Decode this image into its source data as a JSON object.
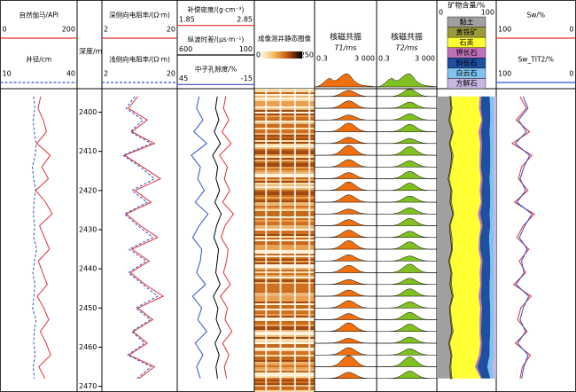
{
  "depth_axis": {
    "label": "深度/m",
    "lim": [
      2394,
      2471
    ],
    "ticks": [
      2400,
      2410,
      2420,
      2430,
      2440,
      2450,
      2460,
      2470
    ]
  },
  "depth": [
    2396,
    2399,
    2402,
    2405,
    2408,
    2411,
    2414,
    2417,
    2420,
    2423,
    2426,
    2429,
    2432,
    2435,
    2438,
    2441,
    2444,
    2447,
    2450,
    2453,
    2456,
    2459,
    2462,
    2465,
    2468
  ],
  "tracks": [
    {
      "curves": [
        {
          "name": "自然伽马/API",
          "color": "#e03030",
          "lim": [
            0,
            200
          ],
          "values": [
            105,
            98,
            112,
            120,
            95,
            130,
            108,
            125,
            92,
            118,
            135,
            102,
            115,
            128,
            99,
            110,
            122,
            96,
            113,
            126,
            104,
            119,
            131,
            100,
            116
          ]
        },
        {
          "name": "井径/cm",
          "color": "#3050d0",
          "dash": true,
          "lim": [
            10,
            40
          ],
          "values": [
            23,
            23.5,
            22.8,
            23.2,
            24,
            23.6,
            22.5,
            23,
            23.8,
            23.1,
            22.9,
            23.4,
            23,
            24.2,
            23.3,
            22.7,
            23.5,
            23.1,
            22.6,
            23.9,
            23.2,
            23,
            23.6,
            22.8,
            23.3
          ]
        }
      ]
    },
    {
      "log": true,
      "curves": [
        {
          "name": "深侧向电阻率/(Ω·m)",
          "color": "#e03030",
          "lim": [
            2,
            20
          ],
          "values": [
            6,
            4.5,
            8,
            5,
            10,
            4,
            7,
            12,
            5.5,
            9,
            4.2,
            6.5,
            11,
            5,
            8.5,
            4.8,
            7.5,
            13,
            6,
            9.5,
            5.2,
            8,
            4.6,
            10,
            6.2
          ]
        },
        {
          "name": "浅侧向电阻率/(Ω·m)",
          "color": "#3050d0",
          "dash": true,
          "lim": [
            2,
            20
          ],
          "values": [
            5.5,
            4.2,
            7,
            4.8,
            9,
            3.8,
            6.5,
            10,
            5,
            8,
            4,
            6,
            9.5,
            4.6,
            7.8,
            4.5,
            7,
            11,
            5.6,
            8.8,
            5,
            7.4,
            4.4,
            9,
            5.8
          ]
        }
      ]
    },
    {
      "curves": [
        {
          "name": "补偿密度/(g·cm⁻³)",
          "color": "#e03030",
          "lim": [
            1.85,
            2.85
          ],
          "values": [
            2.48,
            2.45,
            2.52,
            2.43,
            2.55,
            2.4,
            2.5,
            2.46,
            2.53,
            2.44,
            2.58,
            2.47,
            2.42,
            2.51,
            2.49,
            2.45,
            2.54,
            2.41,
            2.5,
            2.47,
            2.56,
            2.44,
            2.52,
            2.46,
            2.49
          ]
        },
        {
          "name": "纵波时差/(μs·m⁻¹)",
          "color": "#000000",
          "lim": [
            600,
            100
          ],
          "values": [
            340,
            352,
            330,
            360,
            320,
            370,
            338,
            348,
            325,
            356,
            315,
            345,
            362,
            332,
            341,
            350,
            322,
            366,
            336,
            347,
            318,
            355,
            328,
            349,
            339
          ]
        },
        {
          "name": "中子孔隙度/%",
          "color": "#3050d0",
          "lim": [
            45,
            -15
          ],
          "values": [
            28,
            30,
            25,
            32,
            22,
            34,
            27,
            29,
            24,
            31,
            21,
            28,
            33,
            26,
            27,
            30,
            23,
            33,
            26,
            29,
            22,
            31,
            25,
            30,
            27
          ]
        }
      ]
    },
    {
      "title": "成像测井静态图像",
      "scale": [
        0,
        250
      ]
    },
    {
      "title": "核磁共振",
      "unit": "T1/ms",
      "color": "#f07010",
      "scale": [
        0.3,
        {
          "value": 3000,
          "label": "3 000"
        }
      ],
      "amplitude": [
        0.5,
        0.6,
        0.4,
        0.7,
        0.5,
        0.8,
        0.6,
        0.5,
        0.7,
        0.6,
        0.4,
        0.5,
        0.6,
        0.7,
        0.5,
        0.6,
        0.4,
        0.5,
        0.6,
        0.5,
        0.7,
        0.4,
        0.6,
        0.9,
        0.5
      ]
    },
    {
      "title": "核磁共振",
      "unit": "T2/ms",
      "color": "#80c020",
      "scale": [
        0.3,
        {
          "value": 3000,
          "label": "3 000"
        }
      ],
      "amplitude": [
        0.6,
        0.5,
        0.5,
        0.6,
        0.4,
        0.7,
        0.5,
        0.6,
        0.6,
        0.5,
        0.5,
        0.6,
        0.5,
        0.6,
        0.4,
        0.7,
        0.5,
        0.6,
        0.5,
        0.6,
        0.6,
        0.5,
        0.5,
        0.8,
        0.6
      ]
    },
    {
      "title": "矿物含量/%",
      "scale": [
        0,
        100
      ],
      "series": [
        {
          "name": "黏土",
          "color": "#a0a0a0",
          "values": [
            22,
            24,
            20,
            26,
            21,
            25,
            23,
            19,
            24,
            22,
            27,
            21,
            23,
            25,
            20,
            24,
            22,
            26,
            21,
            23,
            25,
            20,
            24,
            22,
            23
          ]
        },
        {
          "name": "黄铁矿",
          "color": "#9a9a3c",
          "values": [
            2,
            2,
            3,
            2,
            2,
            3,
            2,
            2,
            2,
            3,
            2,
            2,
            3,
            2,
            2,
            2,
            3,
            2,
            2,
            2,
            3,
            2,
            2,
            2,
            3
          ]
        },
        {
          "name": "石英",
          "color": "#ffff33",
          "values": [
            48,
            45,
            52,
            42,
            50,
            44,
            47,
            53,
            46,
            49,
            40,
            51,
            45,
            43,
            52,
            46,
            48,
            42,
            50,
            47,
            44,
            51,
            45,
            40,
            48
          ]
        },
        {
          "name": "钾长石",
          "color": "#c070b8",
          "values": [
            3,
            3,
            2,
            4,
            3,
            3,
            2,
            3,
            3,
            2,
            4,
            3,
            2,
            3,
            3,
            3,
            2,
            4,
            3,
            3,
            2,
            3,
            3,
            4,
            2
          ]
        },
        {
          "name": "斜长石",
          "color": "#1f4fa0",
          "values": [
            14,
            16,
            13,
            15,
            14,
            15,
            16,
            12,
            15,
            14,
            16,
            13,
            15,
            16,
            13,
            15,
            14,
            15,
            14,
            15,
            16,
            13,
            15,
            17,
            14
          ]
        },
        {
          "name": "白云石",
          "color": "#7fc4f0",
          "values": [
            7,
            6,
            6,
            7,
            6,
            6,
            6,
            7,
            6,
            6,
            7,
            6,
            8,
            7,
            6,
            6,
            7,
            7,
            6,
            6,
            6,
            7,
            7,
            9,
            6
          ]
        },
        {
          "name": "方解石",
          "color": "#c9b6e2",
          "values": [
            4,
            4,
            4,
            4,
            4,
            4,
            4,
            4,
            4,
            4,
            4,
            4,
            4,
            4,
            4,
            4,
            4,
            4,
            4,
            4,
            4,
            4,
            4,
            6,
            4
          ]
        }
      ]
    },
    {
      "curves": [
        {
          "name": "Sw/%",
          "color": "#e03030",
          "lim": [
            100,
            0
          ],
          "values": [
            70,
            62,
            75,
            58,
            80,
            55,
            68,
            72,
            60,
            77,
            52,
            66,
            74,
            59,
            71,
            63,
            78,
            56,
            69,
            73,
            61,
            76,
            57,
            67,
            70
          ]
        },
        {
          "name": "Sw_TIT2/%",
          "color": "#3050d0",
          "lim": [
            100,
            0
          ],
          "values": [
            66,
            60,
            72,
            62,
            76,
            58,
            65,
            70,
            63,
            74,
            55,
            64,
            71,
            61,
            68,
            65,
            75,
            59,
            66,
            70,
            63,
            73,
            60,
            65,
            68
          ]
        }
      ]
    }
  ]
}
